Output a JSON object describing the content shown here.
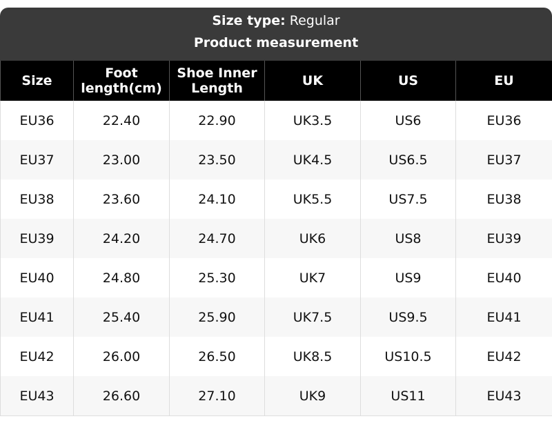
{
  "size_type_label": "Size type:",
  "size_type_value": "Regular",
  "subtitle": "Product measurement",
  "columns": [
    "Size",
    "Foot length(cm)",
    "Shoe Inner Length",
    "UK",
    "US",
    "EU"
  ],
  "rows": [
    [
      "EU36",
      "22.40",
      "22.90",
      "UK3.5",
      "US6",
      "EU36"
    ],
    [
      "EU37",
      "23.00",
      "23.50",
      "UK4.5",
      "US6.5",
      "EU37"
    ],
    [
      "EU38",
      "23.60",
      "24.10",
      "UK5.5",
      "US7.5",
      "EU38"
    ],
    [
      "EU39",
      "24.20",
      "24.70",
      "UK6",
      "US8",
      "EU39"
    ],
    [
      "EU40",
      "24.80",
      "25.30",
      "UK7",
      "US9",
      "EU40"
    ],
    [
      "EU41",
      "25.40",
      "25.90",
      "UK7.5",
      "US9.5",
      "EU41"
    ],
    [
      "EU42",
      "26.00",
      "26.50",
      "UK8.5",
      "US10.5",
      "EU42"
    ],
    [
      "EU43",
      "26.60",
      "27.10",
      "UK9",
      "US11",
      "EU43"
    ]
  ]
}
